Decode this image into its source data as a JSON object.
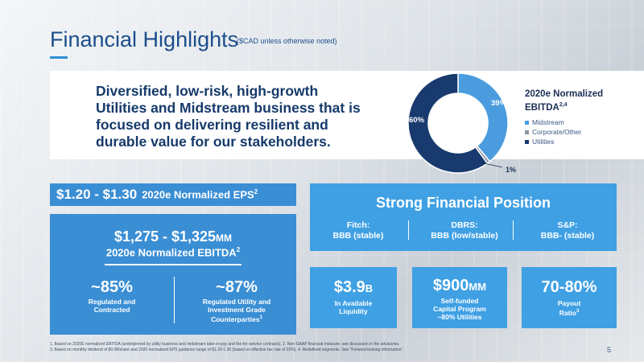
{
  "header": {
    "title": "Financial Highlights",
    "subtitle": "($CAD unless otherwise noted)"
  },
  "hero": {
    "text": "Diversified, low-risk, high-growth Utilities and Midstream business that is focused on delivering resilient and durable value for our stakeholders."
  },
  "chart_data": {
    "type": "pie",
    "title": "2020e Normalized EBITDA",
    "title_superscript": "2,4",
    "labels": [
      "Midstream",
      "Corporate/Other",
      "Utilities"
    ],
    "values": [
      39,
      1,
      60
    ],
    "value_labels": [
      "39%",
      "1%",
      "60%"
    ],
    "colors": [
      "#4a9cde",
      "#8d96a2",
      "#183a6e"
    ],
    "donut": true,
    "legend_position": "right"
  },
  "eps": {
    "value": "$1.20 - $1.30",
    "label": "2020e Normalized EPS",
    "sup": "2"
  },
  "ebitda": {
    "value": "$1,275 - $1,325",
    "unit": "MM",
    "label": "2020e Normalized EBITDA",
    "sup": "2",
    "stats": [
      {
        "value": "~85%",
        "line1": "Regulated and",
        "line2": "Contracted",
        "line3": "",
        "sup": ""
      },
      {
        "value": "~87%",
        "line1": "Regulated Utility and",
        "line2": "Investment Grade",
        "line3": "Counterparties",
        "sup": "1"
      }
    ]
  },
  "financial_position": {
    "title": "Strong Financial Position",
    "ratings": [
      {
        "agency": "Fitch:",
        "rating": "BBB (stable)"
      },
      {
        "agency": "DBRS:",
        "rating": "BBB (low/stable)"
      },
      {
        "agency": "S&P:",
        "rating": "BBB- (stable)"
      }
    ]
  },
  "boxes": [
    {
      "value": "$3.9",
      "unit": "B",
      "line1": "In Available",
      "line2": "Liquidity",
      "line3": "",
      "sup": ""
    },
    {
      "value": "$900",
      "unit": "MM",
      "line1": "Self-funded",
      "line2": "Capital Program",
      "line3": "~80% Utilities",
      "sup": ""
    },
    {
      "value": "70-80%",
      "unit": "",
      "line1": "Payout",
      "line2": "Ratio",
      "line3": "",
      "sup": "3"
    }
  ],
  "footnotes": [
    "1. Based on 2020E normalized EBITDA (underpinned by utility business and midstream take-or-pay and fee-for-service contracts). 2. Non-GAAP financial measure; see discussion in the advisories.",
    "3. Based on monthly dividend of $0.08/share and 2020 normalized EPS guidance range of $1.20-1.30 (based on effective tax rate of 22%). 4. Redefined segments. See \"Forward-looking information\"."
  ],
  "page_number": "5"
}
